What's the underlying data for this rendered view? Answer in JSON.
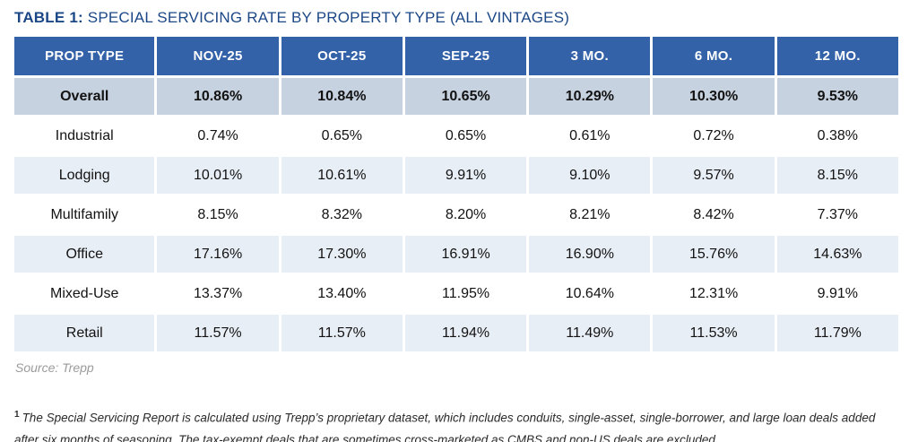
{
  "title": {
    "prefix": "TABLE 1:",
    "text": "SPECIAL SERVICING RATE BY PROPERTY TYPE (ALL VINTAGES)"
  },
  "chart_data": {
    "type": "table",
    "title": "Special Servicing Rate by Property Type (All Vintages)",
    "columns": [
      "PROP TYPE",
      "NOV-25",
      "OCT-25",
      "SEP-25",
      "3 MO.",
      "6 MO.",
      "12 MO."
    ],
    "rows": [
      {
        "label": "Overall",
        "emphasis": true,
        "values": [
          "10.86%",
          "10.84%",
          "10.65%",
          "10.29%",
          "10.30%",
          "9.53%"
        ]
      },
      {
        "label": "Industrial",
        "emphasis": false,
        "values": [
          "0.74%",
          "0.65%",
          "0.65%",
          "0.61%",
          "0.72%",
          "0.38%"
        ]
      },
      {
        "label": "Lodging",
        "emphasis": false,
        "values": [
          "10.01%",
          "10.61%",
          "9.91%",
          "9.10%",
          "9.57%",
          "8.15%"
        ]
      },
      {
        "label": "Multifamily",
        "emphasis": false,
        "values": [
          "8.15%",
          "8.32%",
          "8.20%",
          "8.21%",
          "8.42%",
          "7.37%"
        ]
      },
      {
        "label": "Office",
        "emphasis": false,
        "values": [
          "17.16%",
          "17.30%",
          "16.91%",
          "16.90%",
          "15.76%",
          "14.63%"
        ]
      },
      {
        "label": "Mixed-Use",
        "emphasis": false,
        "values": [
          "13.37%",
          "13.40%",
          "11.95%",
          "10.64%",
          "12.31%",
          "9.91%"
        ]
      },
      {
        "label": "Retail",
        "emphasis": false,
        "values": [
          "11.57%",
          "11.57%",
          "11.94%",
          "11.49%",
          "11.53%",
          "11.79%"
        ]
      }
    ]
  },
  "source": "Source: Trepp",
  "footnote": {
    "marker": "1",
    "text": "The Special Servicing Report is calculated using Trepp’s proprietary dataset, which includes conduits, single-asset, single-borrower, and large loan deals added after six months of seasoning. The tax-exempt deals that are sometimes cross-marketed as CMBS and non-US deals are excluded."
  },
  "colors": {
    "header_bg": "#3462a9",
    "header_text": "#ffffff",
    "overall_row_bg": "#c7d2e0",
    "alt_row_bg": "#e8eef5",
    "title_text": "#1b4787",
    "source_text": "#9b9b9b"
  }
}
